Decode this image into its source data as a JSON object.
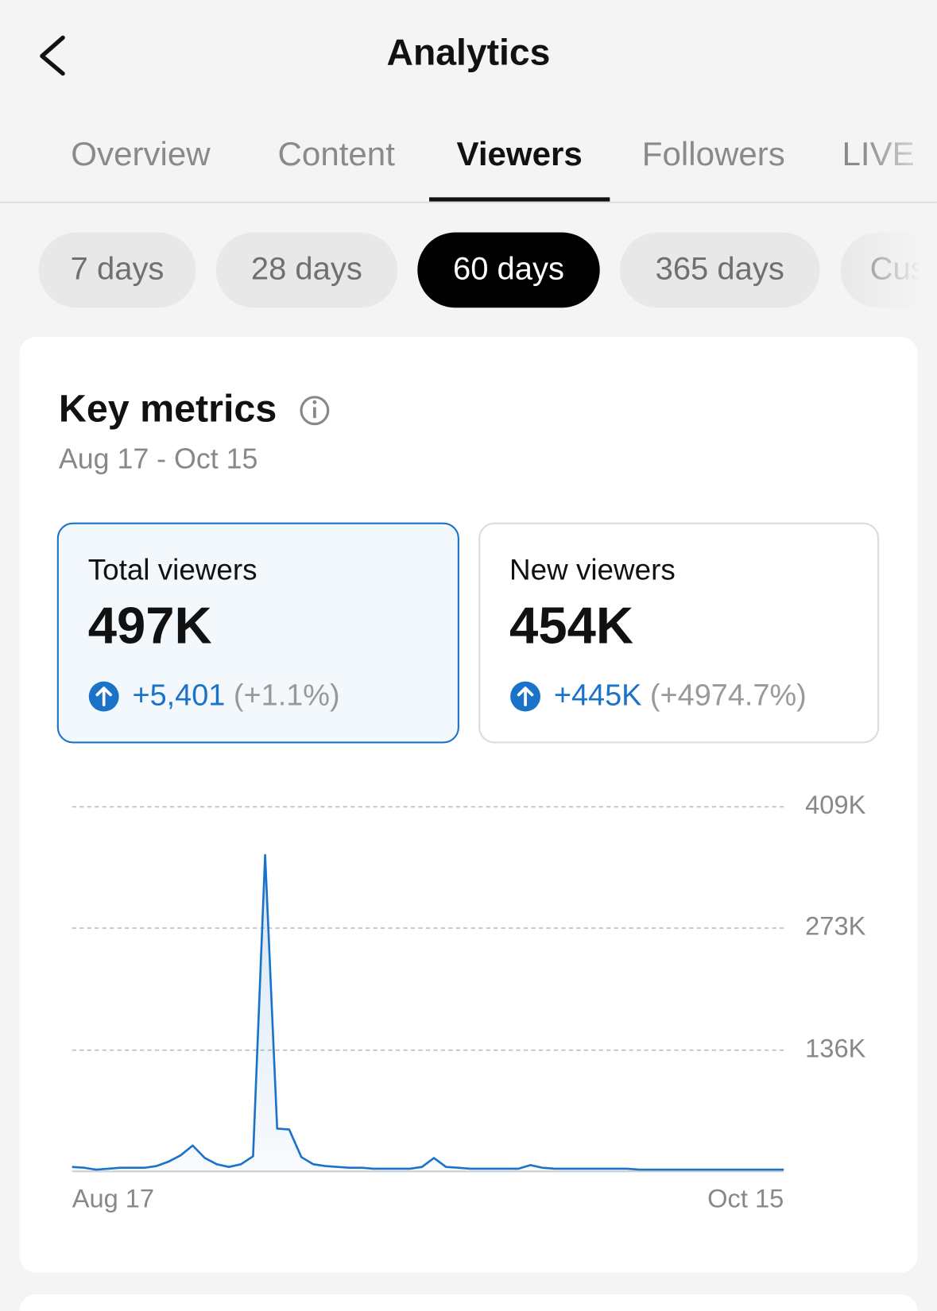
{
  "header": {
    "title": "Analytics"
  },
  "tabs": [
    "Overview",
    "Content",
    "Viewers",
    "Followers",
    "LIVE"
  ],
  "active_tab_index": 2,
  "periods": [
    "7 days",
    "28 days",
    "60 days",
    "365 days",
    "Cus"
  ],
  "active_period_index": 2,
  "card": {
    "title": "Key metrics",
    "date_range": "Aug 17 - Oct 15",
    "metrics": [
      {
        "label": "Total viewers",
        "value": "497K",
        "change": "+5,401",
        "change_pct": "(+1.1%)"
      },
      {
        "label": "New viewers",
        "value": "454K",
        "change": "+445K",
        "change_pct": "(+4974.7%)"
      }
    ]
  },
  "chart_data": {
    "type": "line",
    "color": "#1a73c9",
    "categories": [
      "Aug 17",
      null,
      null,
      null,
      null,
      null,
      null,
      null,
      null,
      null,
      null,
      null,
      null,
      null,
      null,
      null,
      null,
      null,
      null,
      null,
      null,
      null,
      null,
      null,
      null,
      null,
      null,
      null,
      null,
      null,
      null,
      null,
      null,
      null,
      null,
      null,
      null,
      null,
      null,
      null,
      null,
      null,
      null,
      null,
      null,
      null,
      null,
      null,
      null,
      null,
      null,
      null,
      null,
      null,
      null,
      null,
      null,
      null,
      null,
      "Oct 15"
    ],
    "values": [
      5000,
      4000,
      2000,
      3000,
      4000,
      4000,
      4000,
      6000,
      11000,
      18000,
      29000,
      15000,
      8000,
      5000,
      8000,
      17000,
      355000,
      48000,
      47000,
      16000,
      8000,
      6000,
      5000,
      4000,
      4000,
      3000,
      3000,
      3000,
      3000,
      5000,
      15000,
      5000,
      4000,
      3000,
      3000,
      3000,
      3000,
      3000,
      7000,
      4000,
      3000,
      3000,
      3000,
      3000,
      3000,
      3000,
      3000,
      2000,
      2000,
      2000,
      2000,
      2000,
      2000,
      2000,
      2000,
      2000,
      2000,
      2000,
      2000,
      2000
    ],
    "ylim": [
      0,
      409000
    ],
    "yticks": [
      {
        "value": 136000,
        "label": "136K"
      },
      {
        "value": 273000,
        "label": "273K"
      },
      {
        "value": 409000,
        "label": "409K"
      }
    ],
    "grid": true
  }
}
